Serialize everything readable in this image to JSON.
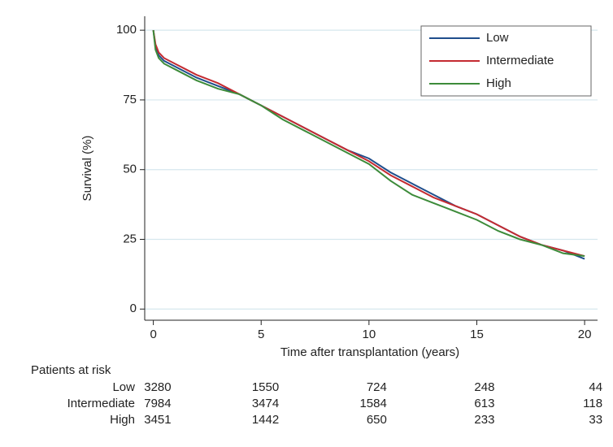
{
  "chart_data": {
    "type": "line",
    "y_label": "Survival (%)",
    "x_label": "Time after transplantation (years)",
    "x": [
      0,
      0.1,
      0.25,
      0.5,
      1,
      1.5,
      2,
      3,
      4,
      5,
      6,
      7,
      8,
      9,
      10,
      11,
      12,
      13,
      14,
      15,
      16,
      17,
      18,
      19,
      20
    ],
    "series": [
      {
        "name": "Low",
        "color": "#1f4e8c",
        "values": [
          100,
          94,
          91,
          89,
          87,
          85,
          83,
          80,
          77,
          73,
          69,
          65,
          61,
          57,
          54,
          49,
          45,
          41,
          37,
          34,
          30,
          26,
          23,
          21,
          18
        ]
      },
      {
        "name": "Intermediate",
        "color": "#c42b31",
        "values": [
          100,
          95,
          92,
          90,
          88,
          86,
          84,
          81,
          77,
          73,
          69,
          65,
          61,
          57,
          53,
          48,
          44,
          40,
          37,
          34,
          30,
          26,
          23,
          21,
          19
        ]
      },
      {
        "name": "High",
        "color": "#3d8b3a",
        "values": [
          100,
          93,
          90,
          88,
          86,
          84,
          82,
          79,
          77,
          73,
          68,
          64,
          60,
          56,
          52,
          46,
          41,
          38,
          35,
          32,
          28,
          25,
          23,
          20,
          19
        ]
      }
    ],
    "xlim": [
      -0.4,
      20.6
    ],
    "ylim": [
      -4,
      105
    ],
    "xticks": [
      0,
      5,
      10,
      15,
      20
    ],
    "yticks": [
      0,
      25,
      50,
      75,
      100
    ],
    "grid": true,
    "legend": "top-right",
    "risk_table": {
      "title": "Patients at risk",
      "rows": [
        {
          "label": "Low",
          "counts": [
            "3280",
            "1550",
            "724",
            "248",
            "44"
          ]
        },
        {
          "label": "Intermediate",
          "counts": [
            "7984",
            "3474",
            "1584",
            "613",
            "118"
          ]
        },
        {
          "label": "High",
          "counts": [
            "3451",
            "1442",
            "650",
            "233",
            "33"
          ]
        }
      ]
    }
  }
}
